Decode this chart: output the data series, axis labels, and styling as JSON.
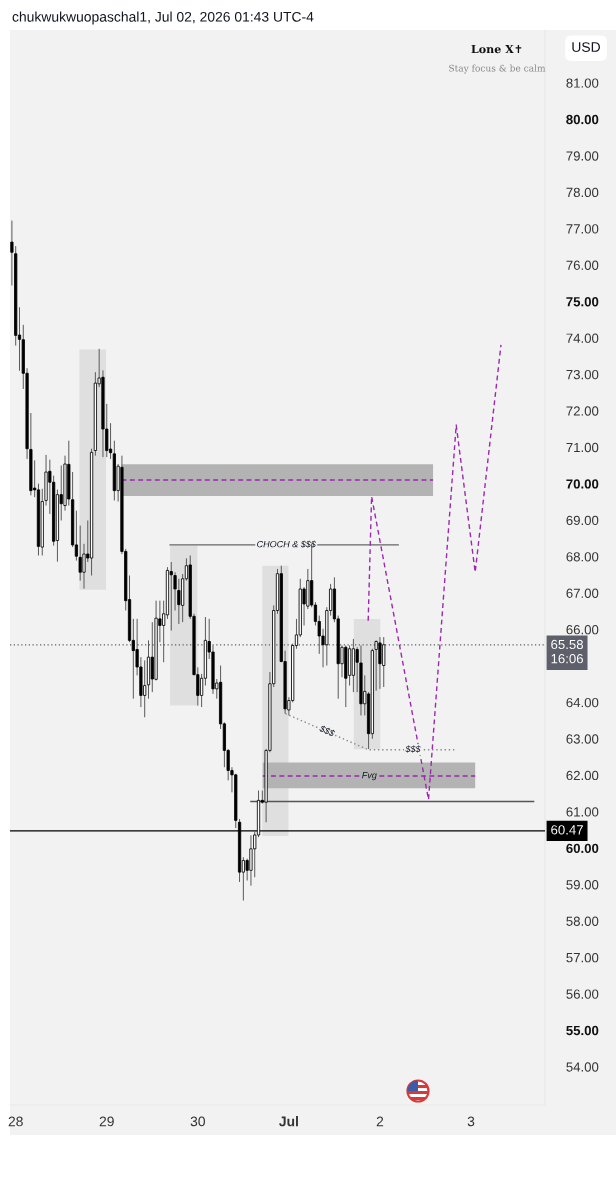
{
  "chart_data": {
    "type": "candlestick",
    "title": "chukwukwuopaschal1, Jul 02, 2026 01:43 UTC-4",
    "ylabel": "USD",
    "x": [
      "2026-06-27T23:00",
      "2026-06-28T00:00",
      "2026-06-28T01:00",
      "2026-06-28T02:00",
      "2026-06-28T03:00",
      "2026-06-28T04:00",
      "2026-06-28T05:00",
      "2026-06-28T06:00",
      "2026-06-28T07:00",
      "2026-06-28T08:00",
      "2026-06-28T09:00",
      "2026-06-28T10:00",
      "2026-06-28T11:00",
      "2026-06-28T12:00",
      "2026-06-28T13:00",
      "2026-06-28T14:00",
      "2026-06-28T15:00",
      "2026-06-28T16:00",
      "2026-06-28T17:00",
      "2026-06-28T18:00",
      "2026-06-28T19:00",
      "2026-06-28T20:00",
      "2026-06-28T21:00",
      "2026-06-28T22:00",
      "2026-06-28T23:00",
      "2026-06-29T00:00",
      "2026-06-29T01:00",
      "2026-06-29T02:00",
      "2026-06-29T03:00",
      "2026-06-29T04:00",
      "2026-06-29T05:00",
      "2026-06-29T06:00",
      "2026-06-29T07:00",
      "2026-06-29T08:00",
      "2026-06-29T09:00",
      "2026-06-29T10:00",
      "2026-06-29T11:00",
      "2026-06-29T12:00",
      "2026-06-29T13:00",
      "2026-06-29T14:00",
      "2026-06-29T15:00",
      "2026-06-29T16:00",
      "2026-06-29T17:00",
      "2026-06-29T18:00",
      "2026-06-29T19:00",
      "2026-06-29T20:00",
      "2026-06-29T21:00",
      "2026-06-29T22:00",
      "2026-06-29T23:00",
      "2026-06-30T00:00",
      "2026-06-30T01:00",
      "2026-06-30T02:00",
      "2026-06-30T03:00",
      "2026-06-30T04:00",
      "2026-06-30T05:00",
      "2026-06-30T06:00",
      "2026-06-30T07:00",
      "2026-06-30T08:00",
      "2026-06-30T09:00",
      "2026-06-30T10:00",
      "2026-06-30T11:00",
      "2026-06-30T12:00",
      "2026-06-30T13:00",
      "2026-06-30T14:00",
      "2026-06-30T15:00",
      "2026-06-30T16:00",
      "2026-06-30T17:00",
      "2026-06-30T18:00",
      "2026-06-30T19:00",
      "2026-06-30T20:00",
      "2026-06-30T21:00",
      "2026-06-30T22:00",
      "2026-06-30T23:00",
      "2026-07-01T00:00",
      "2026-07-01T01:00",
      "2026-07-01T02:00",
      "2026-07-01T03:00",
      "2026-07-01T04:00",
      "2026-07-01T05:00",
      "2026-07-01T06:00",
      "2026-07-01T07:00",
      "2026-07-01T08:00",
      "2026-07-01T09:00",
      "2026-07-01T10:00",
      "2026-07-01T11:00",
      "2026-07-01T12:00",
      "2026-07-01T13:00",
      "2026-07-01T14:00",
      "2026-07-01T15:00",
      "2026-07-01T16:00",
      "2026-07-01T17:00",
      "2026-07-01T18:00",
      "2026-07-01T19:00",
      "2026-07-01T20:00",
      "2026-07-01T21:00",
      "2026-07-01T22:00",
      "2026-07-01T23:00",
      "2026-07-02T00:00",
      "2026-07-02T01:00"
    ],
    "ohlc": [
      [
        76.63,
        77.22,
        75.44,
        76.35
      ],
      [
        76.31,
        76.52,
        73.79,
        74.07
      ],
      [
        74.08,
        74.84,
        73.1,
        73.96
      ],
      [
        73.95,
        74.36,
        72.6,
        73.03
      ],
      [
        73.03,
        73.17,
        70.68,
        70.96
      ],
      [
        70.94,
        71.94,
        69.68,
        69.81
      ],
      [
        69.88,
        70.64,
        69.63,
        69.83
      ],
      [
        69.83,
        70.0,
        68.03,
        68.28
      ],
      [
        68.26,
        69.86,
        68.03,
        69.51
      ],
      [
        69.54,
        70.79,
        69.4,
        70.32
      ],
      [
        70.34,
        70.66,
        69.17,
        70.04
      ],
      [
        70.04,
        70.22,
        68.3,
        68.42
      ],
      [
        68.44,
        69.84,
        67.86,
        69.7
      ],
      [
        69.7,
        70.5,
        68.99,
        69.45
      ],
      [
        69.4,
        70.77,
        69.26,
        70.54
      ],
      [
        70.53,
        71.18,
        69.4,
        69.58
      ],
      [
        69.56,
        70.32,
        68.26,
        68.32
      ],
      [
        68.32,
        69.26,
        67.89,
        68.01
      ],
      [
        67.98,
        68.85,
        67.34,
        67.57
      ],
      [
        67.57,
        68.35,
        67.12,
        68.07
      ],
      [
        68.07,
        68.99,
        67.85,
        67.96
      ],
      [
        67.96,
        70.96,
        67.48,
        70.86
      ],
      [
        70.91,
        73.06,
        70.77,
        72.76
      ],
      [
        72.74,
        73.7,
        72.65,
        72.9
      ],
      [
        72.92,
        73.11,
        70.73,
        71.5
      ],
      [
        71.5,
        72.19,
        70.73,
        70.91
      ],
      [
        70.95,
        71.66,
        70.68,
        70.85
      ],
      [
        70.82,
        71.18,
        69.54,
        69.81
      ],
      [
        69.81,
        70.54,
        69.51,
        70.48
      ],
      [
        70.45,
        70.77,
        68.07,
        68.14
      ],
      [
        68.14,
        68.21,
        66.52,
        66.79
      ],
      [
        66.82,
        67.48,
        65.65,
        65.7
      ],
      [
        65.7,
        66.29,
        64.1,
        65.42
      ],
      [
        65.45,
        66.29,
        64.74,
        64.97
      ],
      [
        64.97,
        65.24,
        63.87,
        64.19
      ],
      [
        64.19,
        65.15,
        63.59,
        64.46
      ],
      [
        64.48,
        65.7,
        64.1,
        65.24
      ],
      [
        65.24,
        66.2,
        64.28,
        64.64
      ],
      [
        64.63,
        66.79,
        64.6,
        66.31
      ],
      [
        66.29,
        66.79,
        65.65,
        66.11
      ],
      [
        66.11,
        66.79,
        65.1,
        66.43
      ],
      [
        66.4,
        67.71,
        66.29,
        67.62
      ],
      [
        67.59,
        67.85,
        65.97,
        67.5
      ],
      [
        67.48,
        67.57,
        66.52,
        67.11
      ],
      [
        67.07,
        67.39,
        66.15,
        66.68
      ],
      [
        66.66,
        67.52,
        66.2,
        67.39
      ],
      [
        67.39,
        67.95,
        67.34,
        67.75
      ],
      [
        67.77,
        68.03,
        66.29,
        66.36
      ],
      [
        66.36,
        66.43,
        64.74,
        64.76
      ],
      [
        64.76,
        64.96,
        63.91,
        64.19
      ],
      [
        64.19,
        64.78,
        63.87,
        64.66
      ],
      [
        64.66,
        66.34,
        64.46,
        65.7
      ],
      [
        65.67,
        66.29,
        65.19,
        65.38
      ],
      [
        65.38,
        65.56,
        64.23,
        64.37
      ],
      [
        64.37,
        64.64,
        64.1,
        64.53
      ],
      [
        64.55,
        65.01,
        63.27,
        63.41
      ],
      [
        63.41,
        63.45,
        62.22,
        62.68
      ],
      [
        62.68,
        62.72,
        61.86,
        62.13
      ],
      [
        62.13,
        62.22,
        61.53,
        62.01
      ],
      [
        62.01,
        62.04,
        60.55,
        60.76
      ],
      [
        60.71,
        60.8,
        59.07,
        59.34
      ],
      [
        59.34,
        59.75,
        58.56,
        59.66
      ],
      [
        59.66,
        59.71,
        59.11,
        59.39
      ],
      [
        59.39,
        60.35,
        58.97,
        59.98
      ],
      [
        59.98,
        60.48,
        59.2,
        60.36
      ],
      [
        60.36,
        61.58,
        60.3,
        61.31
      ],
      [
        61.31,
        61.58,
        61.22,
        61.26
      ],
      [
        61.26,
        62.72,
        60.71,
        62.68
      ],
      [
        62.68,
        64.83,
        62.63,
        64.51
      ],
      [
        64.51,
        66.66,
        64.42,
        66.52
      ],
      [
        66.52,
        67.66,
        66.43,
        67.53
      ],
      [
        67.53,
        67.75,
        65.1,
        65.12
      ],
      [
        65.12,
        65.42,
        63.69,
        63.82
      ],
      [
        63.79,
        64.14,
        63.64,
        64.05
      ],
      [
        64.05,
        65.61,
        64.0,
        65.56
      ],
      [
        65.56,
        66.29,
        65.47,
        65.85
      ],
      [
        65.85,
        67.39,
        65.79,
        67.11
      ],
      [
        67.11,
        67.16,
        66.11,
        66.7
      ],
      [
        66.64,
        67.66,
        66.56,
        67.34
      ],
      [
        67.34,
        68.35,
        66.61,
        66.67
      ],
      [
        66.67,
        66.75,
        66.11,
        66.22
      ],
      [
        66.22,
        66.38,
        65.33,
        65.82
      ],
      [
        65.82,
        66.02,
        64.96,
        65.58
      ],
      [
        65.58,
        66.61,
        65.01,
        66.52
      ],
      [
        66.52,
        67.25,
        66.38,
        67.11
      ],
      [
        67.11,
        67.43,
        66.2,
        66.29
      ],
      [
        66.29,
        66.38,
        64.1,
        65.06
      ],
      [
        65.06,
        65.56,
        64.69,
        65.51
      ],
      [
        65.51,
        65.56,
        63.87,
        64.66
      ],
      [
        64.74,
        65.56,
        64.46,
        65.47
      ],
      [
        64.74,
        65.74,
        64.28,
        65.47
      ],
      [
        65.45,
        65.51,
        64.28,
        65.1
      ],
      [
        65.08,
        65.56,
        63.64,
        63.96
      ],
      [
        63.96,
        64.74,
        63.64,
        64.3
      ],
      [
        64.23,
        64.28,
        62.72,
        63.14
      ],
      [
        63.14,
        65.47,
        63.0,
        65.42
      ],
      [
        65.45,
        65.7,
        64.32,
        65.67
      ],
      [
        65.63,
        65.79,
        64.37,
        65.06
      ],
      [
        65.01,
        65.79,
        64.42,
        65.58
      ]
    ],
    "colors": [
      "#000000",
      "#000000",
      "#000000",
      "#000000",
      "#000000",
      "#000000",
      "#000000",
      "#000000",
      "#ffffff",
      "#ffffff",
      "#000000",
      "#000000",
      "#ffffff",
      "#000000",
      "#ffffff",
      "#000000",
      "#000000",
      "#000000",
      "#000000",
      "#ffffff",
      "#000000",
      "#ffffff",
      "#ffffff",
      "#ffffff",
      "#000000",
      "#000000",
      "#000000",
      "#000000",
      "#ffffff",
      "#000000",
      "#000000",
      "#000000",
      "#000000",
      "#000000",
      "#000000",
      "#ffffff",
      "#ffffff",
      "#000000",
      "#ffffff",
      "#000000",
      "#ffffff",
      "#ffffff",
      "#000000",
      "#000000",
      "#000000",
      "#ffffff",
      "#ffffff",
      "#000000",
      "#000000",
      "#000000",
      "#ffffff",
      "#ffffff",
      "#000000",
      "#000000",
      "#ffffff",
      "#000000",
      "#000000",
      "#000000",
      "#000000",
      "#000000",
      "#000000",
      "#ffffff",
      "#000000",
      "#ffffff",
      "#ffffff",
      "#ffffff",
      "#000000",
      "#ffffff",
      "#ffffff",
      "#ffffff",
      "#ffffff",
      "#000000",
      "#000000",
      "#ffffff",
      "#ffffff",
      "#ffffff",
      "#ffffff",
      "#000000",
      "#ffffff",
      "#000000",
      "#000000",
      "#000000",
      "#000000",
      "#ffffff",
      "#ffffff",
      "#000000",
      "#000000",
      "#ffffff",
      "#000000",
      "#ffffff",
      "#ffffff",
      "#000000",
      "#000000",
      "#ffffff",
      "#000000",
      "#ffffff",
      "#ffffff",
      "#000000",
      "#ffffff"
    ],
    "series": [
      {
        "type": "line",
        "x": [
          "2026-06-28T16:48",
          "2026-06-28T23:48"
        ],
        "values": [
          null,
          null
        ],
        "lower": [
          67.09,
          67.09
        ],
        "upper": [
          73.68,
          73.68
        ],
        "color": "#dfdfdf"
      },
      {
        "type": "line",
        "x": [
          "2026-06-29T16:42",
          "2026-06-29T23:54"
        ],
        "values": [
          null,
          null
        ],
        "lower": [
          63.91,
          63.91
        ],
        "upper": [
          68.3,
          68.3
        ],
        "color": "#dfdfdf"
      },
      {
        "type": "line",
        "x": [
          "2026-06-30T17:00",
          "2026-06-30T23:54"
        ],
        "values": [
          null,
          null
        ],
        "lower": [
          60.33,
          60.33
        ],
        "upper": [
          67.75,
          67.75
        ],
        "color": "#dfdfdf"
      },
      {
        "type": "line",
        "x": [
          "2026-07-01T17:06",
          "2026-07-02T00:06"
        ],
        "values": [
          null,
          null
        ],
        "lower": [
          62.71,
          62.71
        ],
        "upper": [
          66.29,
          66.29
        ],
        "color": "#dfdfdf"
      },
      {
        "type": "line",
        "x": [
          "2026-06-29T03:54",
          "2026-07-02T14:00"
        ],
        "values": [
          null,
          null
        ],
        "lower": [
          69.66,
          69.66
        ],
        "upper": [
          70.53,
          70.53
        ],
        "color": "#b3b3b3"
      },
      {
        "type": "line",
        "x": [
          "2026-06-29T03:54",
          "2026-07-02T14:00"
        ],
        "values": [
          70.1,
          70.1
        ],
        "color": "#9c27b0",
        "line_style": "dashed"
      },
      {
        "type": "line",
        "x": [
          "2026-06-30T17:06",
          "2026-07-03T01:06"
        ],
        "values": [
          null,
          null
        ],
        "lower": [
          61.64,
          61.64
        ],
        "upper": [
          62.35,
          62.35
        ],
        "color": "#b3b3b3"
      },
      {
        "type": "line",
        "x": [
          "2026-06-30T17:06",
          "2026-07-03T01:06"
        ],
        "values": [
          61.98,
          61.98
        ],
        "color": "#9c27b0",
        "line_style": "dashed"
      },
      {
        "type": "line",
        "x": [
          "2026-06-29T16:42",
          "2026-07-02T04:48"
        ],
        "values": [
          68.32,
          68.32
        ],
        "color": "#666666",
        "line_style": "solid"
      },
      {
        "type": "line",
        "x": [
          "2026-06-30T14:00",
          "2026-07-03T16:30"
        ],
        "values": [
          61.28,
          61.28
        ],
        "color": "#555555",
        "line_style": "solid"
      },
      {
        "type": "line",
        "x": [
          "2026-06-30T23:06",
          "2026-07-01T20:54",
          "2026-07-02T19:36"
        ],
        "values": [
          63.69,
          62.7,
          62.7
        ],
        "color": "#888888",
        "line_style": "dotted"
      },
      {
        "type": "line",
        "x": [
          "2026-07-01T20:54",
          "2026-07-01T21:48",
          "2026-07-02T12:48",
          "2026-07-02T20:06",
          "2026-07-03T01:06",
          "2026-07-03T07:54"
        ],
        "values": [
          66.24,
          69.65,
          61.33,
          71.61,
          67.57,
          73.81
        ],
        "color": "#9c27b0",
        "line_style": "dashed"
      }
    ],
    "ref_lines": [
      {
        "axis": "y",
        "value": 65.58,
        "label": "65.58\n16:06",
        "color": "#5d606b",
        "line_style": "dotted"
      },
      {
        "axis": "y",
        "value": 60.47,
        "label": "60.47",
        "color": "#000000",
        "line_style": "solid"
      }
    ],
    "annotations": [
      "Lone X✝",
      "Stay focus & be calm",
      {
        "text": "CHOCH & $$$",
        "x": "2026-06-30T23:18",
        "y": 68.32
      },
      {
        "text": "$$$",
        "x": "2026-07-01T10:00",
        "y": 63.2
      },
      {
        "text": "$$$",
        "x": "2026-07-02T08:42",
        "y": 62.7
      },
      {
        "text": "Fvg",
        "x": "2026-07-01T21:12",
        "y": 61.98
      }
    ],
    "xlim": [
      "2026-06-27T22:30",
      "2026-07-03T19:30"
    ],
    "xticks": [
      {
        "value": "2026-06-28",
        "label": "28"
      },
      {
        "value": "2026-06-29",
        "label": "29"
      },
      {
        "value": "2026-06-30",
        "label": "30"
      },
      {
        "value": "2026-07-01",
        "label": "Jul"
      },
      {
        "value": "2026-07-02",
        "label": "2"
      },
      {
        "value": "2026-07-03",
        "label": "3"
      }
    ],
    "ylim": [
      52.95,
      82.45
    ],
    "yticks": [
      {
        "value": 54,
        "label": "54.00"
      },
      {
        "value": 55,
        "label": "55.00"
      },
      {
        "value": 56,
        "label": "56.00"
      },
      {
        "value": 57,
        "label": "57.00"
      },
      {
        "value": 58,
        "label": "58.00"
      },
      {
        "value": 59,
        "label": "59.00"
      },
      {
        "value": 60,
        "label": "60.00"
      },
      {
        "value": 61,
        "label": "61.00"
      },
      {
        "value": 62,
        "label": "62.00"
      },
      {
        "value": 63,
        "label": "63.00"
      },
      {
        "value": 64,
        "label": "64.00"
      },
      {
        "value": 66,
        "label": "66.00"
      },
      {
        "value": 67,
        "label": "67.00"
      },
      {
        "value": 68,
        "label": "68.00"
      },
      {
        "value": 69,
        "label": "69.00"
      },
      {
        "value": 70,
        "label": "70.00"
      },
      {
        "value": 71,
        "label": "71.00"
      },
      {
        "value": 72,
        "label": "72.00"
      },
      {
        "value": 73,
        "label": "73.00"
      },
      {
        "value": 74,
        "label": "74.00"
      },
      {
        "value": 75,
        "label": "75.00"
      },
      {
        "value": 76,
        "label": "76.00"
      },
      {
        "value": 77,
        "label": "77.00"
      },
      {
        "value": 78,
        "label": "78.00"
      },
      {
        "value": 79,
        "label": "79.00"
      },
      {
        "value": 80,
        "label": "80.00"
      },
      {
        "value": 81,
        "label": "81.00"
      }
    ]
  }
}
